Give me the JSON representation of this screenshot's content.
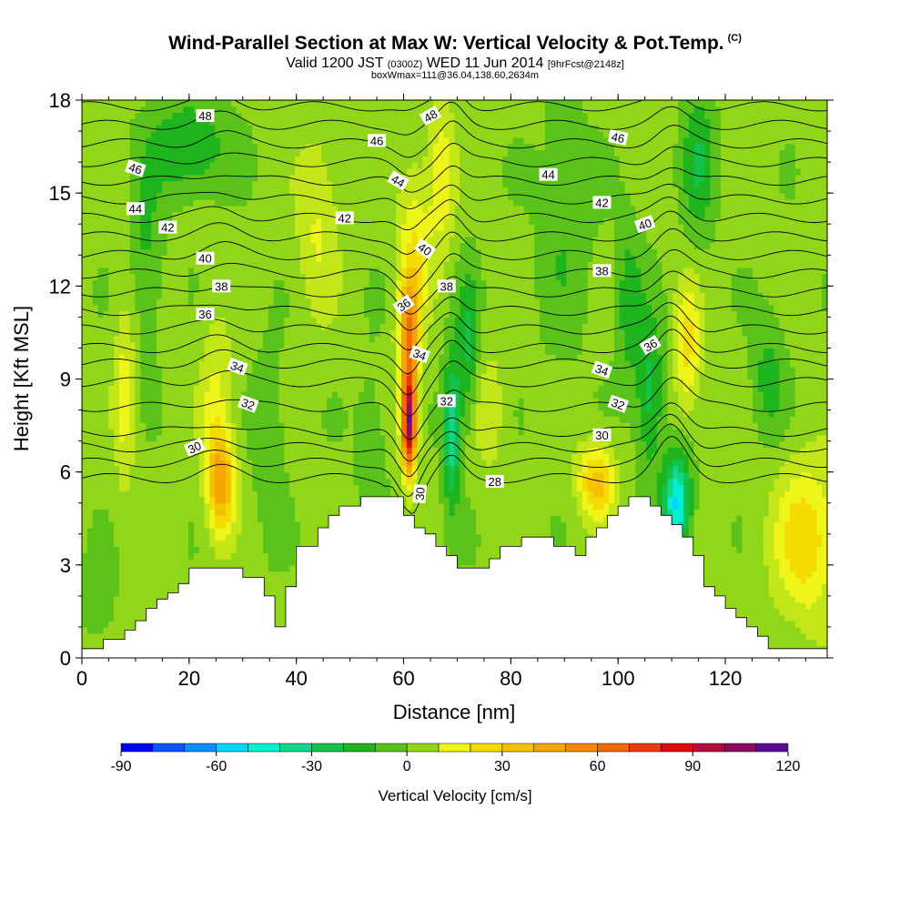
{
  "header": {
    "title": "Wind-Parallel Section at Max W: Vertical Velocity & Pot.Temp.",
    "copyright": "(C)",
    "valid_prefix": "Valid 1200 JST",
    "valid_utc": "(0300Z)",
    "valid_date": "WED 11 Jun 2014",
    "forecast": "[9hrFcst@2148z]",
    "box_info": "boxWmax=111@36.04,138.60,2634m"
  },
  "chart_data": {
    "type": "heatmap",
    "xlabel": "Distance [nm]",
    "ylabel": "Height [Kft MSL]",
    "xlim": [
      0,
      139
    ],
    "ylim": [
      0,
      18
    ],
    "x_ticks": [
      0,
      20,
      40,
      60,
      80,
      100,
      120
    ],
    "y_ticks": [
      0,
      3,
      6,
      9,
      12,
      15,
      18
    ],
    "grid": false,
    "colorbar": {
      "title": "Vertical Velocity [cm/s]",
      "range": [
        -90,
        120
      ],
      "step": 10,
      "tick_values": [
        -90,
        -60,
        -30,
        0,
        30,
        60,
        90,
        120
      ],
      "tick_labels": [
        "-90",
        "-60",
        "-30",
        "0",
        "30",
        "60",
        "90",
        "120"
      ],
      "colors": [
        "#0000f5",
        "#0a55ff",
        "#0b8fff",
        "#00d5ff",
        "#00f0d0",
        "#12d68c",
        "#13c24a",
        "#1eb41e",
        "#5ac31a",
        "#91d618",
        "#c3e619",
        "#f0f519",
        "#f5dc00",
        "#f5c000",
        "#f5a500",
        "#f58a00",
        "#f56a00",
        "#eb3c0a",
        "#dc0a0a",
        "#b40a3c",
        "#8c0a64",
        "#5a0a96"
      ]
    },
    "terrain": {
      "description_free": true,
      "x": [
        0,
        1,
        4,
        6,
        8,
        10,
        12,
        14,
        16,
        18,
        20,
        22,
        24,
        26,
        28,
        30,
        32,
        34,
        36,
        38,
        40,
        42,
        44,
        46,
        48,
        50,
        52,
        54,
        56,
        58,
        60,
        62,
        64,
        66,
        68,
        70,
        72,
        74,
        76,
        78,
        80,
        82,
        84,
        86,
        88,
        90,
        92,
        94,
        96,
        98,
        100,
        102,
        104,
        106,
        108,
        110,
        112,
        114,
        116,
        118,
        120,
        122,
        124,
        126,
        128,
        130,
        132,
        134,
        136,
        139
      ],
      "height": [
        0.3,
        0.3,
        0.6,
        0.6,
        0.9,
        1.2,
        1.6,
        1.9,
        2.1,
        2.4,
        2.9,
        2.9,
        2.9,
        2.9,
        2.9,
        2.6,
        2.6,
        2.0,
        1.0,
        2.3,
        3.6,
        3.6,
        4.2,
        4.6,
        4.9,
        4.9,
        5.2,
        5.2,
        5.2,
        5.2,
        4.6,
        4.2,
        4.0,
        3.6,
        3.3,
        2.9,
        2.9,
        2.9,
        3.2,
        3.6,
        3.6,
        3.9,
        3.9,
        3.9,
        3.6,
        3.6,
        3.3,
        3.9,
        4.2,
        4.6,
        4.9,
        5.2,
        5.2,
        4.9,
        4.6,
        4.3,
        3.9,
        3.3,
        2.3,
        2.0,
        1.6,
        1.3,
        1.0,
        0.7,
        0.3,
        0.3,
        0.3,
        0.3,
        0.3,
        0.3
      ]
    },
    "w_features": [
      {
        "x": 61,
        "z": 7.6,
        "w": 115,
        "sx": 1.4,
        "sz": 1.6
      },
      {
        "x": 61,
        "z": 10.5,
        "w": 60,
        "sx": 2.0,
        "sz": 1.8
      },
      {
        "x": 62,
        "z": 13.5,
        "w": 25,
        "sx": 3,
        "sz": 2.5
      },
      {
        "x": 67,
        "z": 15.5,
        "w": 25,
        "sx": 2.5,
        "sz": 2.5
      },
      {
        "x": 26,
        "z": 5.6,
        "w": 48,
        "sx": 2.5,
        "sz": 1.6
      },
      {
        "x": 25,
        "z": 8,
        "w": 20,
        "sx": 3,
        "sz": 3
      },
      {
        "x": 96,
        "z": 5.7,
        "w": 42,
        "sx": 3.5,
        "sz": 1.2
      },
      {
        "x": 113,
        "z": 10,
        "w": 30,
        "sx": 2.5,
        "sz": 2.2
      },
      {
        "x": 135,
        "z": 3.8,
        "w": 35,
        "sx": 6,
        "sz": 2.5
      },
      {
        "x": 8,
        "z": 8.5,
        "w": 22,
        "sx": 2,
        "sz": 3
      },
      {
        "x": 44,
        "z": 14,
        "w": 18,
        "sx": 4,
        "sz": 3
      },
      {
        "x": 76,
        "z": 8,
        "w": 15,
        "sx": 3,
        "sz": 2
      },
      {
        "x": 69,
        "z": 7.3,
        "w": -40,
        "sx": 1.6,
        "sz": 2.5
      },
      {
        "x": 72,
        "z": 10,
        "w": -25,
        "sx": 2,
        "sz": 2.5
      },
      {
        "x": 111,
        "z": 5.0,
        "w": -55,
        "sx": 2.5,
        "sz": 1.6
      },
      {
        "x": 106,
        "z": 8.5,
        "w": -28,
        "sx": 2.5,
        "sz": 2.5
      },
      {
        "x": 102,
        "z": 11.5,
        "w": -20,
        "sx": 2.5,
        "sz": 2.5
      },
      {
        "x": 20,
        "z": 16.5,
        "w": -25,
        "sx": 7,
        "sz": 1.5
      },
      {
        "x": 12,
        "z": 13,
        "w": -15,
        "sx": 3,
        "sz": 3
      },
      {
        "x": 115,
        "z": 16,
        "w": -22,
        "sx": 3,
        "sz": 2.5
      },
      {
        "x": 90,
        "z": 14,
        "w": -12,
        "sx": 5,
        "sz": 4
      },
      {
        "x": 128,
        "z": 9,
        "w": -18,
        "sx": 3,
        "sz": 2
      },
      {
        "x": 35,
        "z": 7,
        "w": -12,
        "sx": 3,
        "sz": 3
      },
      {
        "x": 54,
        "z": 7,
        "w": -10,
        "sx": 3,
        "sz": 2.5
      },
      {
        "x": 3,
        "z": 2.0,
        "w": -12,
        "sx": 3,
        "sz": 1.5
      }
    ],
    "w_background": 3,
    "theta_contours": {
      "unit": "C",
      "levels": [
        28,
        29,
        30,
        31,
        32,
        33,
        34,
        35,
        36,
        37,
        38,
        39,
        40,
        41,
        42,
        43,
        44,
        45,
        46,
        47,
        48,
        49
      ],
      "base_height": [
        5.8,
        6.3,
        6.8,
        7.3,
        8.1,
        8.9,
        9.5,
        10.0,
        10.6,
        11.2,
        11.8,
        12.4,
        13.0,
        13.6,
        14.2,
        14.8,
        15.4,
        16.0,
        16.6,
        17.2,
        17.8,
        18.4
      ],
      "labels": [
        {
          "text": "48",
          "x": 23,
          "z": 17.5,
          "angle": 0
        },
        {
          "text": "46",
          "x": 10,
          "z": 15.8,
          "angle": 18
        },
        {
          "text": "44",
          "x": 10,
          "z": 14.5,
          "angle": 0
        },
        {
          "text": "42",
          "x": 16,
          "z": 13.9,
          "angle": 0
        },
        {
          "text": "40",
          "x": 23,
          "z": 12.9,
          "angle": 0
        },
        {
          "text": "38",
          "x": 26,
          "z": 12.0,
          "angle": 0
        },
        {
          "text": "36",
          "x": 23,
          "z": 11.1,
          "angle": 0
        },
        {
          "text": "34",
          "x": 29,
          "z": 9.4,
          "angle": 20
        },
        {
          "text": "32",
          "x": 31,
          "z": 8.2,
          "angle": 20
        },
        {
          "text": "30",
          "x": 21,
          "z": 6.8,
          "angle": -25
        },
        {
          "text": "46",
          "x": 55,
          "z": 16.7,
          "angle": 0
        },
        {
          "text": "48",
          "x": 65,
          "z": 17.5,
          "angle": -30
        },
        {
          "text": "44",
          "x": 59,
          "z": 15.4,
          "angle": 30
        },
        {
          "text": "42",
          "x": 49,
          "z": 14.2,
          "angle": 0
        },
        {
          "text": "40",
          "x": 64,
          "z": 13.2,
          "angle": 35
        },
        {
          "text": "38",
          "x": 68,
          "z": 12.0,
          "angle": 0
        },
        {
          "text": "36",
          "x": 60,
          "z": 11.4,
          "angle": -35
        },
        {
          "text": "34",
          "x": 63,
          "z": 9.8,
          "angle": 20
        },
        {
          "text": "32",
          "x": 68,
          "z": 8.3,
          "angle": 0
        },
        {
          "text": "30",
          "x": 63,
          "z": 5.3,
          "angle": -85
        },
        {
          "text": "28",
          "x": 77,
          "z": 5.7,
          "angle": 0
        },
        {
          "text": "44",
          "x": 87,
          "z": 15.6,
          "angle": 0
        },
        {
          "text": "46",
          "x": 100,
          "z": 16.8,
          "angle": 12
        },
        {
          "text": "42",
          "x": 97,
          "z": 14.7,
          "angle": 0
        },
        {
          "text": "40",
          "x": 105,
          "z": 14.0,
          "angle": -20
        },
        {
          "text": "38",
          "x": 97,
          "z": 12.5,
          "angle": 0
        },
        {
          "text": "36",
          "x": 106,
          "z": 10.1,
          "angle": -30
        },
        {
          "text": "34",
          "x": 97,
          "z": 9.3,
          "angle": 20
        },
        {
          "text": "32",
          "x": 100,
          "z": 8.2,
          "angle": 20
        },
        {
          "text": "30",
          "x": 97,
          "z": 7.2,
          "angle": 0
        }
      ]
    }
  }
}
